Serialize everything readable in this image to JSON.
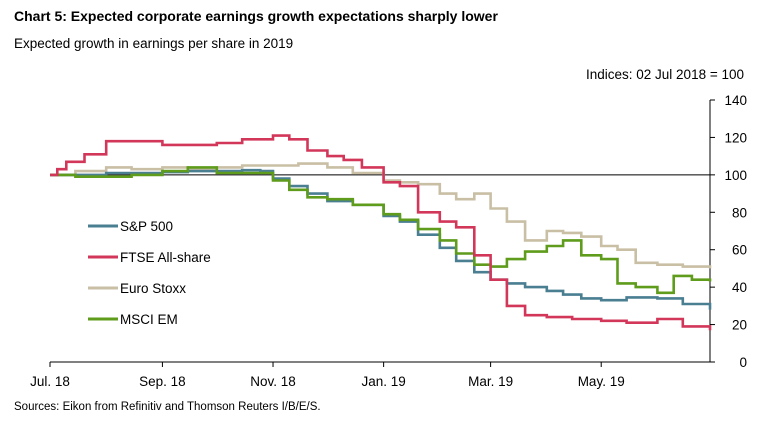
{
  "header": {
    "title": "Chart 5:  Expected corporate earnings growth expectations sharply lower",
    "subtitle": "Expected growth in earnings per share in 2019",
    "indices_note": "Indices:  02 Jul 2018 = 100"
  },
  "footer": {
    "source": "Sources:  Eikon from Refinitiv and Thomson Reuters I/B/E/S."
  },
  "chart_data": {
    "type": "line",
    "title": "Chart 5:  Expected corporate earnings growth expectations sharply lower",
    "subtitle": "Expected growth in earnings per share in 2019",
    "xlabel": "",
    "ylabel": "",
    "x_tick_labels": [
      "Jul. 18",
      "Sep. 18",
      "Nov. 18",
      "Jan. 19",
      "Mar. 19",
      "May. 19"
    ],
    "x_tick_dates": [
      "2018-07-01",
      "2018-09-01",
      "2018-11-01",
      "2019-01-01",
      "2019-03-01",
      "2019-05-01"
    ],
    "xlim": [
      "2018-07-01",
      "2019-06-30"
    ],
    "ylim": [
      0,
      140
    ],
    "y_ticks": [
      0,
      20,
      40,
      60,
      80,
      100,
      120,
      140
    ],
    "y_axis_side": "right",
    "reference_line": 100,
    "legend_placement": "left-center",
    "colors": {
      "S&P 500": "#4a7f92",
      "FTSE All-share": "#d2375a",
      "Euro Stoxx": "#c9bfa5",
      "MSCI EM": "#5f9c1c"
    },
    "series": [
      {
        "name": "S&P 500",
        "points": [
          [
            "2018-07-01",
            100
          ],
          [
            "2018-07-15",
            100
          ],
          [
            "2018-08-01",
            101
          ],
          [
            "2018-08-15",
            101
          ],
          [
            "2018-09-01",
            101.5
          ],
          [
            "2018-09-15",
            102
          ],
          [
            "2018-10-01",
            102
          ],
          [
            "2018-10-15",
            102.5
          ],
          [
            "2018-10-25",
            102
          ],
          [
            "2018-11-01",
            98
          ],
          [
            "2018-11-10",
            94
          ],
          [
            "2018-11-20",
            90
          ],
          [
            "2018-12-01",
            86
          ],
          [
            "2018-12-15",
            84
          ],
          [
            "2019-01-01",
            78
          ],
          [
            "2019-01-10",
            75
          ],
          [
            "2019-01-20",
            68
          ],
          [
            "2019-02-01",
            61
          ],
          [
            "2019-02-10",
            54
          ],
          [
            "2019-02-20",
            48
          ],
          [
            "2019-03-01",
            44
          ],
          [
            "2019-03-10",
            42
          ],
          [
            "2019-03-20",
            40
          ],
          [
            "2019-04-01",
            38
          ],
          [
            "2019-04-10",
            36
          ],
          [
            "2019-04-20",
            34
          ],
          [
            "2019-05-01",
            33
          ],
          [
            "2019-05-15",
            34.5
          ],
          [
            "2019-06-01",
            34
          ],
          [
            "2019-06-15",
            31
          ],
          [
            "2019-06-30",
            28
          ]
        ]
      },
      {
        "name": "FTSE All-share",
        "points": [
          [
            "2018-07-01",
            100
          ],
          [
            "2018-07-05",
            103
          ],
          [
            "2018-07-10",
            107
          ],
          [
            "2018-07-20",
            111
          ],
          [
            "2018-08-01",
            118
          ],
          [
            "2018-08-15",
            118
          ],
          [
            "2018-09-01",
            116
          ],
          [
            "2018-09-15",
            116
          ],
          [
            "2018-10-01",
            117
          ],
          [
            "2018-10-15",
            119
          ],
          [
            "2018-11-01",
            121
          ],
          [
            "2018-11-10",
            119
          ],
          [
            "2018-11-20",
            113
          ],
          [
            "2018-12-01",
            110
          ],
          [
            "2018-12-10",
            108
          ],
          [
            "2018-12-20",
            104
          ],
          [
            "2019-01-01",
            96
          ],
          [
            "2019-01-10",
            94
          ],
          [
            "2019-01-20",
            80
          ],
          [
            "2019-02-01",
            75
          ],
          [
            "2019-02-10",
            72
          ],
          [
            "2019-02-20",
            57
          ],
          [
            "2019-03-01",
            44
          ],
          [
            "2019-03-10",
            30
          ],
          [
            "2019-03-20",
            25
          ],
          [
            "2019-04-01",
            24
          ],
          [
            "2019-04-15",
            23
          ],
          [
            "2019-05-01",
            22
          ],
          [
            "2019-05-15",
            21
          ],
          [
            "2019-06-01",
            23
          ],
          [
            "2019-06-15",
            19
          ],
          [
            "2019-06-30",
            17
          ]
        ]
      },
      {
        "name": "Euro Stoxx",
        "points": [
          [
            "2018-07-01",
            100
          ],
          [
            "2018-07-15",
            102
          ],
          [
            "2018-08-01",
            104
          ],
          [
            "2018-08-15",
            103
          ],
          [
            "2018-09-01",
            104
          ],
          [
            "2018-09-15",
            103
          ],
          [
            "2018-10-01",
            104
          ],
          [
            "2018-10-15",
            105
          ],
          [
            "2018-11-01",
            105
          ],
          [
            "2018-11-15",
            106
          ],
          [
            "2018-12-01",
            104
          ],
          [
            "2018-12-15",
            101
          ],
          [
            "2019-01-01",
            97
          ],
          [
            "2019-01-10",
            96
          ],
          [
            "2019-01-20",
            95
          ],
          [
            "2019-02-01",
            90
          ],
          [
            "2019-02-10",
            87
          ],
          [
            "2019-02-20",
            90
          ],
          [
            "2019-03-01",
            82
          ],
          [
            "2019-03-10",
            75
          ],
          [
            "2019-03-20",
            65
          ],
          [
            "2019-04-01",
            70
          ],
          [
            "2019-04-10",
            69
          ],
          [
            "2019-04-20",
            67
          ],
          [
            "2019-05-01",
            62
          ],
          [
            "2019-05-10",
            60
          ],
          [
            "2019-05-20",
            53
          ],
          [
            "2019-06-01",
            52
          ],
          [
            "2019-06-15",
            51
          ],
          [
            "2019-06-30",
            50
          ]
        ]
      },
      {
        "name": "MSCI EM",
        "points": [
          [
            "2018-07-01",
            100
          ],
          [
            "2018-07-15",
            99
          ],
          [
            "2018-08-01",
            99
          ],
          [
            "2018-08-15",
            100
          ],
          [
            "2018-09-01",
            102
          ],
          [
            "2018-09-15",
            104
          ],
          [
            "2018-10-01",
            101
          ],
          [
            "2018-10-15",
            101
          ],
          [
            "2018-11-01",
            97
          ],
          [
            "2018-11-10",
            92
          ],
          [
            "2018-11-20",
            88
          ],
          [
            "2018-12-01",
            87
          ],
          [
            "2018-12-15",
            84
          ],
          [
            "2019-01-01",
            79
          ],
          [
            "2019-01-10",
            76
          ],
          [
            "2019-01-20",
            71
          ],
          [
            "2019-02-01",
            65
          ],
          [
            "2019-02-10",
            58
          ],
          [
            "2019-02-20",
            52
          ],
          [
            "2019-03-01",
            51
          ],
          [
            "2019-03-10",
            55
          ],
          [
            "2019-03-20",
            59
          ],
          [
            "2019-04-01",
            62
          ],
          [
            "2019-04-10",
            65
          ],
          [
            "2019-04-20",
            57
          ],
          [
            "2019-05-01",
            55
          ],
          [
            "2019-05-10",
            42
          ],
          [
            "2019-05-20",
            40
          ],
          [
            "2019-06-01",
            37
          ],
          [
            "2019-06-10",
            46
          ],
          [
            "2019-06-20",
            44
          ],
          [
            "2019-06-30",
            43
          ]
        ]
      }
    ]
  }
}
